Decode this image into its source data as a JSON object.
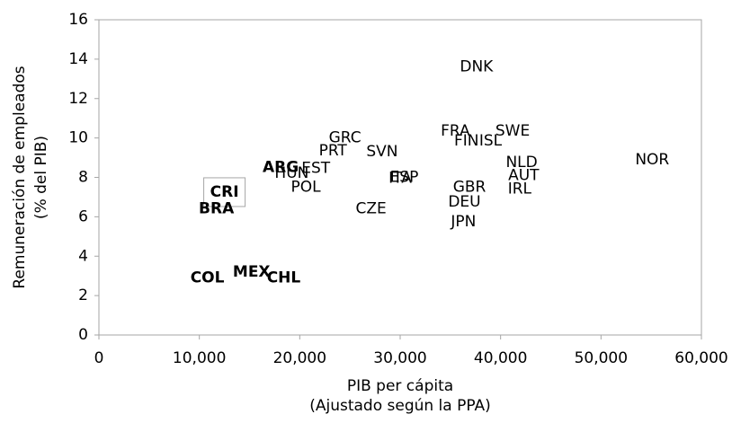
{
  "chart_data": {
    "type": "scatter",
    "x_label": [
      "PIB per cápita",
      "(Ajustado según la PPA)"
    ],
    "y_label": [
      "Remuneración de empleados",
      "(% del PIB)"
    ],
    "xlim": [
      0,
      60000
    ],
    "xticks": [
      0,
      {
        "value": 10000,
        "label": "10,000"
      },
      {
        "value": 20000,
        "label": "20,000"
      },
      {
        "value": 30000,
        "label": "30,000"
      },
      {
        "value": 40000,
        "label": "40,000"
      },
      {
        "value": 50000,
        "label": "50,000"
      },
      {
        "value": 60000,
        "label": "60,000"
      }
    ],
    "ylim": [
      0,
      16
    ],
    "yticks": [
      0,
      2,
      4,
      6,
      8,
      10,
      12,
      14,
      16
    ],
    "labels": [
      "DNK",
      "FRA",
      "SWE",
      "FIN",
      "ISL",
      "GRC",
      "PRT",
      "SVN",
      "NOR",
      "NLD",
      "AUT",
      "ARG",
      "EST",
      "HUN",
      "ESP",
      "ITA",
      "POL",
      "GBR",
      "IRL",
      "CRI",
      "DEU",
      "BRA",
      "CZE",
      "JPN",
      "COL",
      "MEX",
      "CHL"
    ],
    "x": [
      37600,
      35500,
      41200,
      36600,
      39000,
      24500,
      23300,
      28200,
      55100,
      42100,
      42300,
      18100,
      21600,
      19200,
      30400,
      30000,
      20600,
      36900,
      41900,
      12500,
      36400,
      11700,
      27100,
      36300,
      10800,
      15200,
      18400
    ],
    "y": [
      13.6,
      10.35,
      10.35,
      9.85,
      9.85,
      10.0,
      9.35,
      9.3,
      8.9,
      8.75,
      8.1,
      8.5,
      8.45,
      8.2,
      8.0,
      7.95,
      7.5,
      7.5,
      7.4,
      7.25,
      6.75,
      6.4,
      6.4,
      5.75,
      2.9,
      3.2,
      2.9
    ],
    "bold": [
      false,
      false,
      false,
      false,
      false,
      false,
      false,
      false,
      false,
      false,
      false,
      true,
      false,
      false,
      false,
      false,
      false,
      false,
      false,
      true,
      false,
      true,
      false,
      false,
      true,
      true,
      true
    ],
    "boxed": [
      false,
      false,
      false,
      false,
      false,
      false,
      false,
      false,
      false,
      false,
      false,
      false,
      false,
      false,
      false,
      false,
      false,
      false,
      false,
      true,
      false,
      false,
      false,
      false,
      false,
      false,
      false
    ]
  }
}
